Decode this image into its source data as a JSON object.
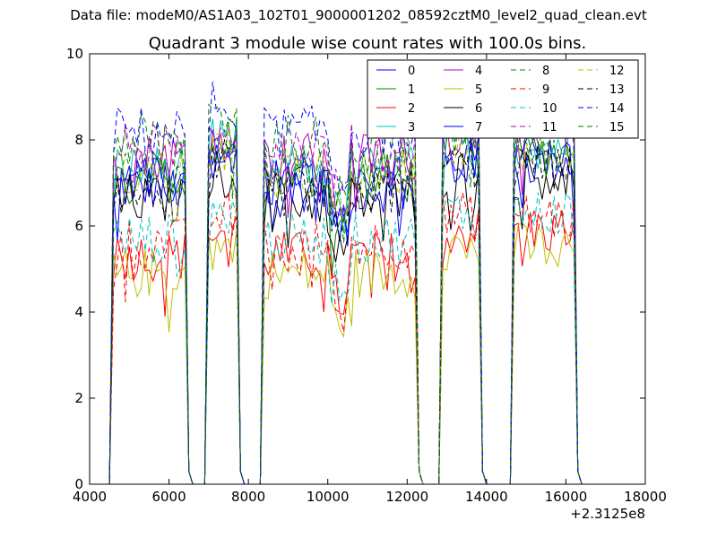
{
  "figure": {
    "supertitle": "Data file: modeM0/AS1A03_102T01_9000001202_08592cztM0_level2_quad_clean.evt"
  },
  "chart_data": {
    "type": "line",
    "title": "Quadrant 3 module wise count rates with 100.0s bins.",
    "xlabel": "",
    "ylabel": "",
    "x_offset_label": "+2.3125e8",
    "xlim": [
      4000,
      18000
    ],
    "ylim": [
      0,
      10
    ],
    "x_ticks": [
      "4000",
      "6000",
      "8000",
      "10000",
      "12000",
      "14000",
      "16000",
      "18000"
    ],
    "y_ticks": [
      "0",
      "2",
      "4",
      "6",
      "8",
      "10"
    ],
    "grid": false,
    "legend_position": "top-right",
    "legend_columns": 4,
    "segments": [
      {
        "start": 4600,
        "end": 6400
      },
      {
        "start": 7000,
        "end": 7700
      },
      {
        "start": 8400,
        "end": 12200
      },
      {
        "start": 12900,
        "end": 13800
      },
      {
        "start": 14700,
        "end": 16200
      }
    ],
    "series": [
      {
        "name": "0",
        "color": "#0000ff",
        "dash": "solid",
        "level": 6.9
      },
      {
        "name": "1",
        "color": "#008000",
        "dash": "solid",
        "level": 7.1
      },
      {
        "name": "2",
        "color": "#ff0000",
        "dash": "solid",
        "level": 5.3
      },
      {
        "name": "3",
        "color": "#00bfbf",
        "dash": "solid",
        "level": 7.3
      },
      {
        "name": "4",
        "color": "#bf00bf",
        "dash": "solid",
        "level": 7.6
      },
      {
        "name": "5",
        "color": "#bfbf00",
        "dash": "solid",
        "level": 4.9
      },
      {
        "name": "6",
        "color": "#000000",
        "dash": "solid",
        "level": 6.6
      },
      {
        "name": "7",
        "color": "#0000ff",
        "dash": "solid",
        "level": 7.0
      },
      {
        "name": "8",
        "color": "#008000",
        "dash": "dashed",
        "level": 7.4
      },
      {
        "name": "9",
        "color": "#ff0000",
        "dash": "dashed",
        "level": 5.6
      },
      {
        "name": "10",
        "color": "#00bfbf",
        "dash": "dashed",
        "level": 5.7
      },
      {
        "name": "11",
        "color": "#bf00bf",
        "dash": "dashed",
        "level": 7.8
      },
      {
        "name": "12",
        "color": "#bfbf00",
        "dash": "dashed",
        "level": 7.2
      },
      {
        "name": "13",
        "color": "#000000",
        "dash": "dashed",
        "level": 6.8
      },
      {
        "name": "14",
        "color": "#0000ff",
        "dash": "dashed",
        "level": 8.2
      },
      {
        "name": "15",
        "color": "#008000",
        "dash": "dashed",
        "level": 8.0
      }
    ]
  }
}
